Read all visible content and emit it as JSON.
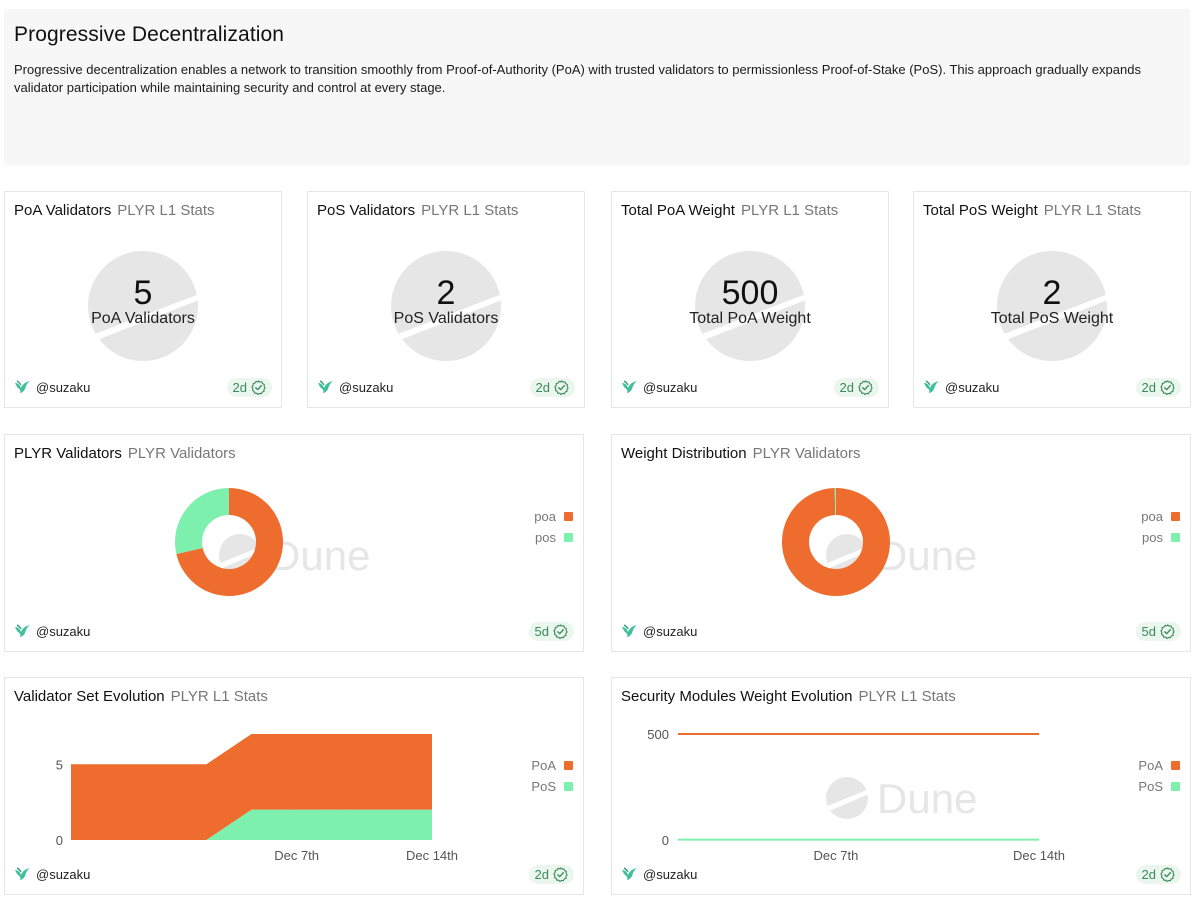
{
  "intro": {
    "title": "Progressive Decentralization",
    "text": "Progressive decentralization enables a network to transition smoothly from Proof-of-Authority (PoA) with trusted validators to permissionless Proof-of-Stake (PoS). This approach gradually expands validator participation while maintaining security and control at every stage."
  },
  "colors": {
    "poa": "#ee6c2e",
    "pos": "#7ef0ae",
    "watermark": "#e6e6e6"
  },
  "watermark": "Dune",
  "counters": [
    {
      "title": "PoA Validators",
      "subtitle": "PLYR L1 Stats",
      "value": "5",
      "label": "PoA Validators",
      "author": "@suzaku",
      "age": "2d"
    },
    {
      "title": "PoS Validators",
      "subtitle": "PLYR L1 Stats",
      "value": "2",
      "label": "PoS Validators",
      "author": "@suzaku",
      "age": "2d"
    },
    {
      "title": "Total PoA Weight",
      "subtitle": "PLYR L1 Stats",
      "value": "500",
      "label": "Total PoA Weight",
      "author": "@suzaku",
      "age": "2d"
    },
    {
      "title": "Total PoS Weight",
      "subtitle": "PLYR L1 Stats",
      "value": "2",
      "label": "Total PoS Weight",
      "author": "@suzaku",
      "age": "2d"
    }
  ],
  "donuts": [
    {
      "title": "PLYR Validators",
      "subtitle": "PLYR Validators",
      "author": "@suzaku",
      "age": "5d"
    },
    {
      "title": "Weight Distribution",
      "subtitle": "PLYR Validators",
      "author": "@suzaku",
      "age": "5d"
    }
  ],
  "areas": [
    {
      "title": "Validator Set Evolution",
      "subtitle": "PLYR L1 Stats",
      "author": "@suzaku",
      "age": "2d"
    },
    {
      "title": "Security Modules Weight Evolution",
      "subtitle": "PLYR L1 Stats",
      "author": "@suzaku",
      "age": "2d"
    }
  ],
  "chart_data": [
    {
      "type": "pie",
      "title": "PLYR Validators",
      "categories": [
        "poa",
        "pos"
      ],
      "values": [
        5,
        2
      ],
      "legend": [
        "poa",
        "pos"
      ]
    },
    {
      "type": "pie",
      "title": "Weight Distribution",
      "categories": [
        "poa",
        "pos"
      ],
      "values": [
        500,
        2
      ],
      "legend": [
        "poa",
        "pos"
      ]
    },
    {
      "type": "area",
      "title": "Validator Set Evolution",
      "x": [
        0,
        6,
        8,
        16
      ],
      "series": [
        {
          "name": "PoS",
          "values": [
            0,
            0,
            2,
            2
          ]
        },
        {
          "name": "PoA",
          "values": [
            5,
            5,
            5,
            5
          ]
        }
      ],
      "xdomain": [
        0,
        16
      ],
      "xticks": [
        {
          "x": 10,
          "label": "Dec 7th"
        },
        {
          "x": 16,
          "label": "Dec 14th"
        }
      ],
      "yticks": [
        0,
        5
      ],
      "ylim": [
        0,
        7
      ],
      "legend": [
        "PoA",
        "PoS"
      ]
    },
    {
      "type": "line",
      "title": "Security Modules Weight Evolution",
      "x": [
        0,
        16
      ],
      "series": [
        {
          "name": "PoA",
          "values": [
            500,
            500
          ]
        },
        {
          "name": "PoS",
          "values": [
            2,
            2
          ]
        }
      ],
      "xdomain": [
        0,
        16
      ],
      "xticks": [
        {
          "x": 7,
          "label": "Dec 7th"
        },
        {
          "x": 16,
          "label": "Dec 14th"
        }
      ],
      "yticks": [
        0,
        500
      ],
      "ylim": [
        0,
        500
      ],
      "legend": [
        "PoA",
        "PoS"
      ]
    }
  ]
}
